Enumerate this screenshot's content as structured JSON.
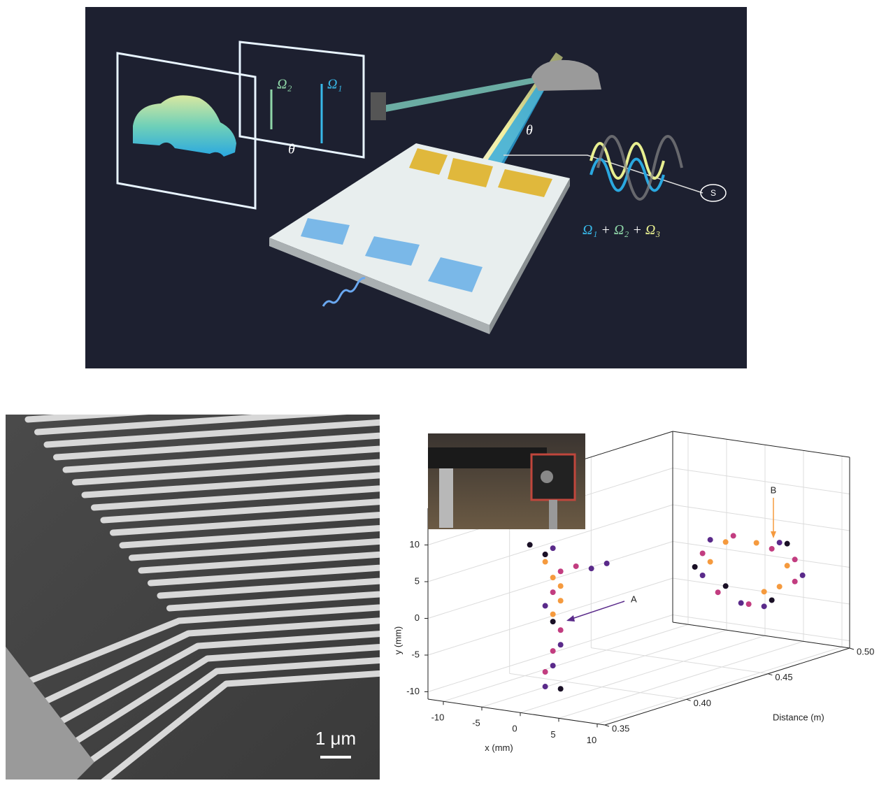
{
  "illustration": {
    "labels": {
      "omega2": "Ω₂",
      "omega1": "Ω₁",
      "theta_screen": "θ",
      "theta_beam": "θ",
      "source": "S",
      "sum": [
        "Ω₁",
        "+",
        "Ω₂",
        "+",
        "Ω₃"
      ]
    }
  },
  "sem_image": {
    "scale_bar": "1 μm"
  },
  "chart_data": {
    "type": "scatter3d",
    "xlabel": "x (mm)",
    "ylabel": "y (mm)",
    "zlabel": "Distance (m)",
    "xlim": [
      -12,
      11
    ],
    "ylim": [
      -11,
      15
    ],
    "zlim": [
      0.35,
      0.5
    ],
    "xticks": [
      -10,
      -5,
      0,
      5,
      10
    ],
    "yticks": [
      -10,
      -5,
      0,
      5,
      10
    ],
    "zticks": [
      0.35,
      {
        "value": 0.4,
        "label": "0.40"
      },
      0.45,
      {
        "value": 0.5,
        "label": "0.50"
      }
    ],
    "grid": true,
    "annotations": [
      "A",
      "B"
    ],
    "series": [
      {
        "color": "#f59a3e",
        "x": [
          0,
          1,
          0,
          -1,
          1,
          -3,
          2,
          5,
          -5,
          1,
          4
        ],
        "y": [
          6,
          3,
          1,
          8,
          5,
          2,
          -4,
          0,
          -1,
          2.5,
          -3
        ],
        "z": [
          0.37,
          0.37,
          0.37,
          0.37,
          0.37,
          0.49,
          0.49,
          0.49,
          0.49,
          0.49,
          0.49
        ]
      },
      {
        "color": "#c23d80",
        "x": [
          -1,
          0,
          1,
          0,
          -1,
          1,
          3,
          -6,
          6,
          -2,
          3,
          -4,
          0,
          6
        ],
        "y": [
          9,
          4,
          -1,
          -4,
          -7,
          7,
          8,
          0,
          -2,
          3,
          2,
          -5,
          -6,
          1
        ],
        "z": [
          0.37,
          0.37,
          0.37,
          0.37,
          0.37,
          0.37,
          0.37,
          0.49,
          0.49,
          0.49,
          0.49,
          0.49,
          0.49,
          0.49
        ]
      },
      {
        "color": "#5a2a8a",
        "x": [
          0,
          -1,
          1,
          0,
          -1,
          5,
          7,
          -6,
          7,
          -1,
          4,
          -5,
          2
        ],
        "y": [
          10,
          2,
          -3,
          -6,
          -9,
          8,
          9,
          -3,
          -1,
          -6,
          3,
          2,
          -6
        ],
        "z": [
          0.37,
          0.37,
          0.37,
          0.37,
          0.37,
          0.37,
          0.37,
          0.49,
          0.49,
          0.49,
          0.49,
          0.49,
          0.49
        ]
      },
      {
        "color": "#1a1026",
        "x": [
          -3,
          0,
          1,
          -1,
          -7,
          3,
          -3,
          5
        ],
        "y": [
          10,
          0,
          -9,
          9,
          -2,
          -5,
          -4,
          3
        ],
        "z": [
          0.37,
          0.37,
          0.37,
          0.37,
          0.49,
          0.49,
          0.49,
          0.49
        ]
      }
    ]
  }
}
